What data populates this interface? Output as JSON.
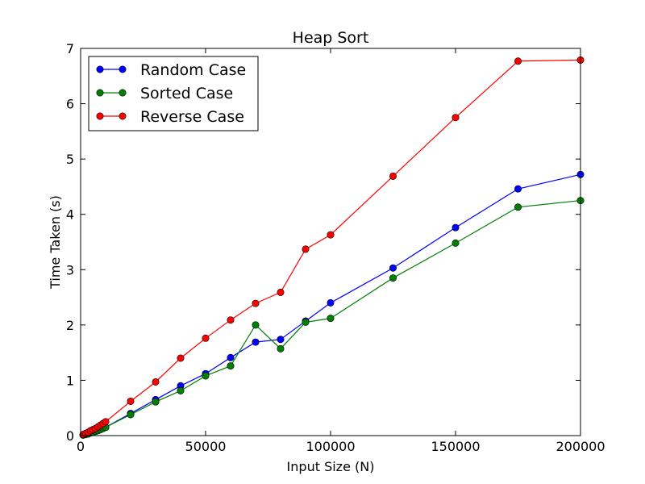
{
  "chart_data": {
    "type": "line",
    "title": "Heap Sort",
    "xlabel": "Input Size (N)",
    "ylabel": "Time Taken (s)",
    "xlim": [
      0,
      200000
    ],
    "ylim": [
      0,
      7
    ],
    "xticks": [
      0,
      50000,
      100000,
      150000,
      200000
    ],
    "xtick_labels": [
      "0",
      "50000",
      "100000",
      "150000",
      "200000"
    ],
    "yticks": [
      0,
      1,
      2,
      3,
      4,
      5,
      6,
      7
    ],
    "ytick_labels": [
      "0",
      "1",
      "2",
      "3",
      "4",
      "5",
      "6",
      "7"
    ],
    "grid": false,
    "legend_position": "top-left",
    "x": [
      1000,
      2000,
      3000,
      4000,
      5000,
      6000,
      7000,
      8000,
      9000,
      10000,
      20000,
      30000,
      40000,
      50000,
      60000,
      70000,
      80000,
      90000,
      100000,
      125000,
      150000,
      175000,
      200000
    ],
    "series": [
      {
        "name": "Random Case",
        "color": "#0000ff",
        "values": [
          0.01,
          0.02,
          0.04,
          0.05,
          0.07,
          0.08,
          0.1,
          0.12,
          0.13,
          0.15,
          0.4,
          0.65,
          0.9,
          1.12,
          1.41,
          1.69,
          1.74,
          2.07,
          2.4,
          3.03,
          3.76,
          4.46,
          4.72
        ]
      },
      {
        "name": "Sorted Case",
        "color": "#008000",
        "values": [
          0.01,
          0.02,
          0.03,
          0.05,
          0.06,
          0.08,
          0.09,
          0.11,
          0.13,
          0.15,
          0.38,
          0.61,
          0.81,
          1.08,
          1.26,
          2.0,
          1.57,
          2.05,
          2.12,
          2.85,
          3.48,
          4.13,
          4.25
        ]
      },
      {
        "name": "Reverse Case",
        "color": "#ff0000",
        "values": [
          0.02,
          0.04,
          0.06,
          0.09,
          0.11,
          0.13,
          0.16,
          0.19,
          0.22,
          0.25,
          0.62,
          0.97,
          1.4,
          1.76,
          2.09,
          2.39,
          2.59,
          3.37,
          3.63,
          4.69,
          5.75,
          6.77,
          6.79
        ]
      }
    ]
  }
}
